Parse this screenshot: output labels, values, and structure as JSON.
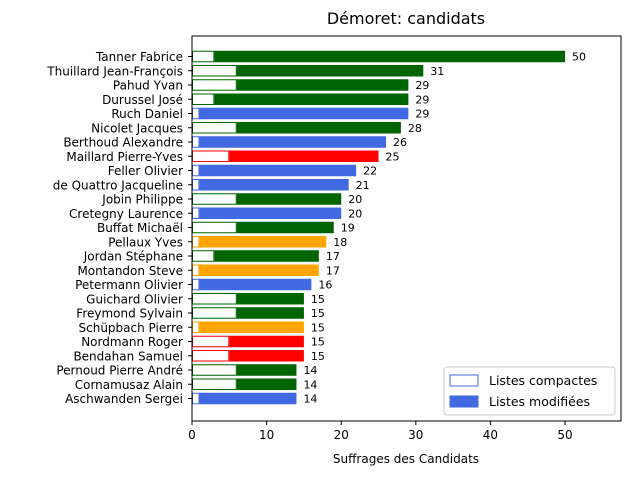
{
  "chart_data": {
    "type": "bar",
    "orientation": "horizontal",
    "title": "Démoret: candidats",
    "xlabel": "Suffrages des Candidats",
    "ylabel": "",
    "xlim": [
      0,
      57.5
    ],
    "xticks": [
      0,
      10,
      20,
      30,
      40,
      50
    ],
    "grid": false,
    "legend_position": "lower-right",
    "legend": [
      {
        "label": "Listes compactes",
        "style": "outline",
        "color": "#4169e1"
      },
      {
        "label": "Listes modifiées",
        "style": "filled",
        "color": "#4169e1"
      }
    ],
    "categories": [
      "Tanner Fabrice",
      "Thuillard Jean-François",
      "Pahud Yvan",
      "Durussel José",
      "Ruch Daniel",
      "Nicolet Jacques",
      "Berthoud Alexandre",
      "Maillard Pierre-Yves",
      "Feller Olivier",
      "de Quattro Jacqueline",
      "Jobin Philippe",
      "Cretegny Laurence",
      "Buffat Michaël",
      "Pellaux Yves",
      "Jordan Stéphane",
      "Montandon Steve",
      "Petermann Olivier",
      "Guichard Olivier",
      "Freymond Sylvain",
      "Schüpbach Pierre",
      "Nordmann Roger",
      "Bendahan Samuel",
      "Pernoud Pierre André",
      "Cornamusaz Alain",
      "Aschwanden Sergei"
    ],
    "totals": [
      50,
      31,
      29,
      29,
      29,
      28,
      26,
      25,
      22,
      21,
      20,
      20,
      19,
      18,
      17,
      17,
      16,
      15,
      15,
      15,
      15,
      15,
      14,
      14,
      14
    ],
    "compact": [
      3,
      6,
      6,
      3,
      1,
      6,
      1,
      5,
      1,
      1,
      6,
      1,
      6,
      1,
      3,
      1,
      1,
      6,
      6,
      1,
      5,
      5,
      6,
      6,
      1
    ],
    "colors": [
      "#006400",
      "#006400",
      "#006400",
      "#006400",
      "#4169e1",
      "#006400",
      "#4169e1",
      "#ff0000",
      "#4169e1",
      "#4169e1",
      "#006400",
      "#4169e1",
      "#006400",
      "#ffa500",
      "#006400",
      "#ffa500",
      "#4169e1",
      "#006400",
      "#006400",
      "#ffa500",
      "#ff0000",
      "#ff0000",
      "#006400",
      "#006400",
      "#4169e1"
    ]
  }
}
